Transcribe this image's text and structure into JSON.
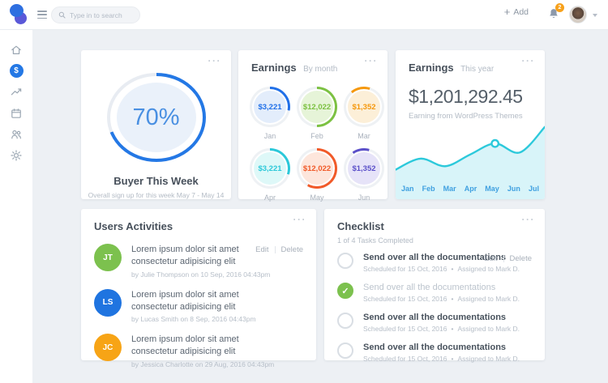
{
  "ui": {
    "more": "···"
  },
  "actions": {
    "edit": "Edit",
    "delete": "Delete"
  },
  "topbar": {
    "search_placeholder": "Type in to search",
    "add_label": "Add",
    "badge": "2"
  },
  "sidebar": {
    "active": "earnings",
    "items": [
      "home-icon",
      "earnings-dollar-icon",
      "analytics-trend-icon",
      "calendar-icon",
      "users-icon",
      "settings-gear-icon"
    ],
    "dollar_symbol": "$"
  },
  "buyer": {
    "percent_label": "70%",
    "percent_value": 70,
    "ring_color": "#2478e5",
    "track_color": "#e8ecf2",
    "inner_color": "#eaf1fa",
    "title": "Buyer This Week",
    "subtitle": "Overall sign up for this week May 7 - May 14"
  },
  "earnings_month": {
    "title": "Earnings",
    "subtitle": "By month",
    "items": [
      {
        "value": "$3,221",
        "month": "Jan",
        "color": "#2170e8",
        "fill": "#e3edfb",
        "percent": 28,
        "rotate": 0
      },
      {
        "value": "$12,022",
        "month": "Feb",
        "color": "#7cc142",
        "fill": "#e6f4d8",
        "percent": 50,
        "rotate": 0
      },
      {
        "value": "$1,352",
        "month": "Mar",
        "color": "#f5980c",
        "fill": "#fcefd8",
        "percent": 16,
        "rotate": -40
      },
      {
        "value": "$3,221",
        "month": "Apr",
        "color": "#2bc8d9",
        "fill": "#def8f8",
        "percent": 30,
        "rotate": 0
      },
      {
        "value": "$12,022",
        "month": "May",
        "color": "#f15a29",
        "fill": "#fde6dc",
        "percent": 58,
        "rotate": 0
      },
      {
        "value": "$1,352",
        "month": "Jun",
        "color": "#5b50c9",
        "fill": "#e6e3f8",
        "percent": 14,
        "rotate": -35
      }
    ]
  },
  "earnings_year": {
    "title": "Earnings",
    "subtitle": "This year",
    "amount": "$1,201,292.45",
    "caption": "Earning from WordPress Themes"
  },
  "chart_data": {
    "type": "area",
    "title": "Earnings This year",
    "x": [
      "Jan",
      "Feb",
      "Mar",
      "Apr",
      "May",
      "Jun",
      "Jul"
    ],
    "values": [
      30,
      46,
      35,
      52,
      68,
      55,
      92
    ],
    "marker_index": 4,
    "line_color": "#2cc9db",
    "fill_color": "#d8f4f9",
    "label_color": "#3fa0e0",
    "grid": false,
    "legend": false
  },
  "activities": {
    "title": "Users Activities",
    "items": [
      {
        "initials": "JT",
        "avatar_color": "#7cc14e",
        "text": "Lorem ipsum dolor sit amet consectetur adipisicing elit",
        "byline": "by Julie Thompson on 10 Sep, 2016 04:43pm"
      },
      {
        "initials": "LS",
        "avatar_color": "#1f74e0",
        "text": "Lorem ipsum dolor sit amet consectetur adipisicing elit",
        "byline": "by Lucas Smith on 8 Sep, 2016 04:43pm"
      },
      {
        "initials": "JC",
        "avatar_color": "#f7a416",
        "text": "Lorem ipsum dolor sit amet consectetur adipisicing elit",
        "byline": "by Jessica Charlotte on 29 Aug, 2016 04:43pm"
      }
    ]
  },
  "checklist": {
    "title": "Checklist",
    "subtitle": "1 of 4 Tasks Completed",
    "separator": "•",
    "items": [
      {
        "title": "Send over all the documentations",
        "scheduled": "Scheduled for 15 Oct, 2016",
        "assigned": "Assigned to Mark D.",
        "completed": false
      },
      {
        "title": "Send over all the documentations",
        "scheduled": "Scheduled for 15 Oct, 2016",
        "assigned": "Assigned to Mark D.",
        "completed": true
      },
      {
        "title": "Send over all the documentations",
        "scheduled": "Scheduled for 15 Oct, 2016",
        "assigned": "Assigned to Mark D.",
        "completed": false
      },
      {
        "title": "Send over all the documentations",
        "scheduled": "Scheduled for 15 Oct, 2016",
        "assigned": "Assigned to Mark D.",
        "completed": false
      }
    ]
  }
}
